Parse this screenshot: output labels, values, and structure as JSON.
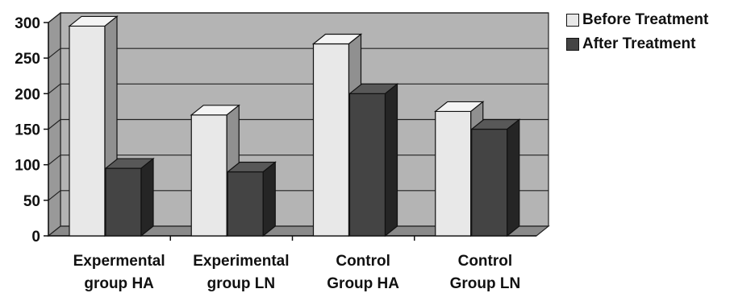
{
  "chart_data": {
    "type": "bar",
    "categories": [
      [
        "Expermental",
        "group HA"
      ],
      [
        "Experimental",
        "group LN"
      ],
      [
        "Control",
        "Group HA"
      ],
      [
        "Control",
        "Group LN"
      ]
    ],
    "series": [
      {
        "name": "Before Treatment",
        "values": [
          295,
          170,
          270,
          175
        ],
        "color": "#e8e8e8"
      },
      {
        "name": "After Treatment",
        "values": [
          95,
          90,
          200,
          150
        ],
        "color": "#444444"
      }
    ],
    "ylim": [
      0,
      300
    ],
    "yticks": [
      0,
      50,
      100,
      150,
      200,
      250,
      300
    ],
    "grid": true,
    "legend_position": "top-right",
    "style": "3d-clustered",
    "colors": {
      "wall": "#b4b4b4",
      "floor": "#8a8a8a",
      "gridline": "#222222"
    }
  }
}
